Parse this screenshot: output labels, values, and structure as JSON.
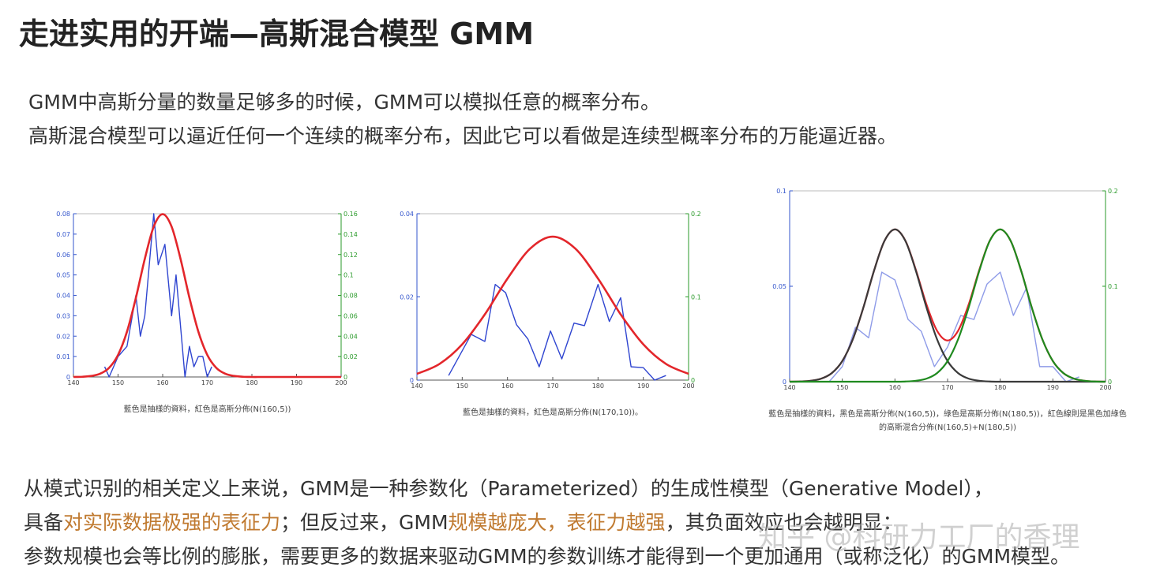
{
  "title": "走进实用的开端—高斯混合模型 GMM",
  "intro": [
    "GMM中高斯分量的数量足够多的时候，GMM可以模拟任意的概率分布。",
    "高斯混合模型可以逼近任何一个连续的概率分布，因此它可以看做是连续型概率分布的万能逼近器。"
  ],
  "chart_data": [
    {
      "type": "line",
      "caption": [
        "藍色是抽樣的資料，紅色是高斯分佈(N(160,5))"
      ],
      "xlim": [
        140,
        200
      ],
      "xticks": [
        140,
        150,
        160,
        170,
        180,
        190,
        200
      ],
      "ylim": [
        0,
        0.08
      ],
      "yticks": [
        0,
        0.01,
        0.02,
        0.03,
        0.04,
        0.05,
        0.06,
        0.07,
        0.08
      ],
      "y2lim": [
        0,
        0.16
      ],
      "y2ticks": [
        0,
        0.02,
        0.04,
        0.06,
        0.08,
        0.1,
        0.12,
        0.14,
        0.16
      ],
      "series": [
        {
          "color": "#2f45d0",
          "x": [
            147,
            148,
            150,
            152,
            154,
            155,
            156,
            158,
            159,
            160.5,
            162,
            163,
            165,
            166,
            167,
            168,
            169,
            170,
            171
          ],
          "values": [
            0.005,
            0,
            0.01,
            0.015,
            0.04,
            0.02,
            0.03,
            0.08,
            0.055,
            0.065,
            0.03,
            0.05,
            0,
            0.015,
            0.005,
            0.01,
            0.01,
            0,
            0.005
          ]
        },
        {
          "color": "#e3262b",
          "smooth": true,
          "x": [
            140,
            142,
            144,
            146,
            148,
            150,
            152,
            154,
            156,
            158,
            160,
            162,
            164,
            166,
            168,
            170,
            172,
            174,
            176,
            178,
            180,
            182,
            184,
            186,
            188,
            190,
            192,
            194,
            196,
            198,
            200
          ],
          "values": [
            0,
            0.0001,
            0.0005,
            0.0016,
            0.0045,
            0.0108,
            0.0222,
            0.0388,
            0.0579,
            0.0737,
            0.0798,
            0.0737,
            0.0579,
            0.0388,
            0.0222,
            0.0108,
            0.0045,
            0.0016,
            0.0005,
            0.0001,
            0,
            0,
            0,
            0,
            0,
            0,
            0,
            0,
            0,
            0,
            0
          ]
        }
      ]
    },
    {
      "type": "line",
      "caption": [
        "藍色是抽樣的資料，紅色是高斯分佈(N(170,10))。"
      ],
      "xlim": [
        140,
        200
      ],
      "xticks": [
        140,
        150,
        160,
        170,
        180,
        190,
        200
      ],
      "ylim": [
        0,
        0.04
      ],
      "yticks": [
        0,
        0.02,
        0.04
      ],
      "y2lim": [
        0,
        0.2
      ],
      "y2ticks": [
        0,
        0.1,
        0.2
      ],
      "series": [
        {
          "color": "#2f45d0",
          "x": [
            147,
            152,
            155,
            157.3,
            159.6,
            162,
            164.5,
            167,
            169.5,
            172,
            174.7,
            177,
            180,
            182.5,
            185,
            187.3,
            190,
            192.5,
            195
          ],
          "values": [
            0.0011,
            0.011,
            0.0093,
            0.023,
            0.021,
            0.0133,
            0.0099,
            0.0032,
            0.0118,
            0.0051,
            0.0137,
            0.0131,
            0.023,
            0.0141,
            0.0198,
            0.0032,
            0.003,
            0,
            0.0011
          ]
        },
        {
          "color": "#e3262b",
          "smooth": true,
          "x": [
            140,
            145,
            150,
            155,
            160,
            165,
            170,
            175,
            180,
            185,
            190,
            195,
            200
          ],
          "values": [
            0.0015,
            0.0039,
            0.0086,
            0.0158,
            0.0244,
            0.0316,
            0.0345,
            0.0316,
            0.0244,
            0.0158,
            0.0086,
            0.0039,
            0.0015
          ]
        }
      ]
    },
    {
      "type": "line",
      "caption": [
        "藍色是抽樣的資料，黑色是高斯分佈(N(160,5))，綠色是高斯分佈(N(180,5))，紅色線則是黑色加綠色",
        "的高斯混合分佈(N(160,5)+N(180,5))"
      ],
      "xlim": [
        140,
        200
      ],
      "xticks": [
        140,
        150,
        160,
        170,
        180,
        190,
        200
      ],
      "ylim": [
        0,
        0.1
      ],
      "yticks": [
        0,
        0.05,
        0.1
      ],
      "y2lim": [
        0,
        0.2
      ],
      "y2ticks": [
        0,
        0.1,
        0.2
      ],
      "series": [
        {
          "color": "#8e9be8",
          "x": [
            147.5,
            150,
            152.5,
            155,
            157.5,
            160,
            162.5,
            165,
            167.5,
            170,
            172.5,
            175,
            177.5,
            180,
            182.5,
            185,
            187.5,
            190,
            192.5,
            195
          ],
          "values": [
            0,
            0.0079,
            0.0285,
            0.023,
            0.0574,
            0.0533,
            0.0326,
            0.0264,
            0.0079,
            0.0182,
            0.0347,
            0.0326,
            0.0512,
            0.0574,
            0.0347,
            0.0492,
            0.0079,
            0.0079,
            0,
            0.0025
          ]
        },
        {
          "color": "#e3262b",
          "smooth": true,
          "x": [
            140,
            142,
            144,
            146,
            148,
            150,
            152,
            154,
            156,
            158,
            160,
            162,
            164,
            166,
            168,
            170,
            172,
            174,
            176,
            178,
            180,
            182,
            184,
            186,
            188,
            190,
            192,
            194,
            196,
            198,
            200
          ],
          "values": [
            0,
            0.0001,
            0.0005,
            0.0016,
            0.0045,
            0.0108,
            0.0222,
            0.0388,
            0.0579,
            0.0737,
            0.0798,
            0.0738,
            0.0584,
            0.0404,
            0.0267,
            0.0216,
            0.0267,
            0.0404,
            0.0584,
            0.0738,
            0.0798,
            0.0737,
            0.0579,
            0.0388,
            0.0222,
            0.0108,
            0.0045,
            0.0016,
            0.0005,
            0.0001,
            0
          ]
        },
        {
          "color": "#3a3a3a",
          "smooth": true,
          "x": [
            140,
            142,
            144,
            146,
            148,
            150,
            152,
            154,
            156,
            158,
            160,
            162,
            164,
            166,
            168,
            170,
            172,
            174,
            176,
            178,
            180,
            182,
            184,
            186,
            188,
            190,
            192,
            194,
            196,
            198,
            200
          ],
          "values": [
            0,
            0.0001,
            0.0005,
            0.0016,
            0.0045,
            0.0108,
            0.0222,
            0.0388,
            0.0579,
            0.0737,
            0.0798,
            0.0737,
            0.0579,
            0.0388,
            0.0222,
            0.0108,
            0.0045,
            0.0016,
            0.0005,
            0.0001,
            0,
            0,
            0,
            0,
            0,
            0,
            0,
            0,
            0,
            0,
            0
          ]
        },
        {
          "color": "#1f8a1f",
          "smooth": true,
          "x": [
            140,
            142,
            144,
            146,
            148,
            150,
            152,
            154,
            156,
            158,
            160,
            162,
            164,
            166,
            168,
            170,
            172,
            174,
            176,
            178,
            180,
            182,
            184,
            186,
            188,
            190,
            192,
            194,
            196,
            198,
            200
          ],
          "values": [
            0,
            0,
            0,
            0,
            0,
            0,
            0,
            0,
            0,
            0,
            0,
            0.0001,
            0.0005,
            0.0016,
            0.0045,
            0.0108,
            0.0222,
            0.0388,
            0.0579,
            0.0737,
            0.0798,
            0.0737,
            0.0579,
            0.0388,
            0.0222,
            0.0108,
            0.0045,
            0.0016,
            0.0005,
            0.0001,
            0
          ]
        }
      ]
    }
  ],
  "body": [
    [
      {
        "text": "从模式识别的相关定义上来说，GMM是一种参数化（Parameterized）的生成性模型（Generative Model），"
      }
    ],
    [
      {
        "text": "具备"
      },
      {
        "text": "对实际数据极强的表征力",
        "color": "#c07a30"
      },
      {
        "text": "；但反过来，GMM"
      },
      {
        "text": "规模越庞大，表征力越强",
        "color": "#c07a30"
      },
      {
        "text": "，其负面效应也会越明显："
      }
    ],
    [
      {
        "text": "参数规模也会等比例的膨胀，需要更多的数据来驱动GMM的参数训练才能得到一个更加通用（或称泛化）的GMM模型。"
      }
    ]
  ],
  "watermark": "知乎 @科研力工厂的香理"
}
